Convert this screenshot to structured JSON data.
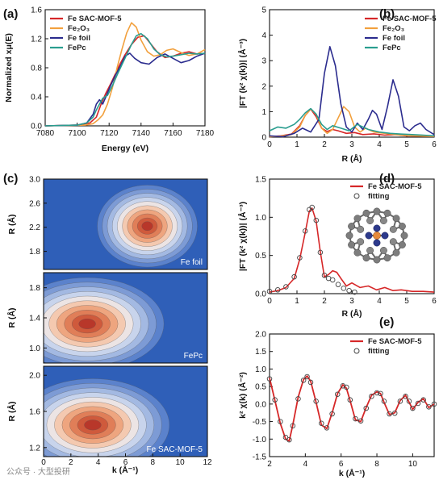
{
  "panel_labels": [
    "(a)",
    "(b)",
    "(c)",
    "(d)",
    "(e)"
  ],
  "watermark": "公众号 · 大型投研",
  "colors": {
    "fe_sac": "#d62728",
    "fe2o3": "#f2a03d",
    "fe_foil": "#2b2c8e",
    "fepc": "#2a9d8f",
    "fitting": "#444444"
  },
  "chart_data": [
    {
      "panel": "(a)",
      "type": "line",
      "xlabel": "Energy (eV)",
      "ylabel": "Normalized xμ(E)",
      "xlim": [
        7080,
        7180
      ],
      "ylim": [
        0.0,
        1.6
      ],
      "xticks": [
        "7080",
        "7100",
        "7120",
        "7140",
        "7160",
        "7180"
      ],
      "yticks": [
        "0.0",
        "0.4",
        "0.8",
        "1.2",
        "1.6"
      ],
      "legend_position": "top-left",
      "series": [
        {
          "name": "Fe SAC-MOF-5",
          "color": "#d62728",
          "x": [
            7080,
            7100,
            7108,
            7112,
            7115,
            7118,
            7121,
            7124,
            7127,
            7130,
            7134,
            7138,
            7142,
            7146,
            7150,
            7155,
            7160,
            7165,
            7170,
            7175,
            7180
          ],
          "y": [
            0.0,
            0.01,
            0.04,
            0.12,
            0.3,
            0.45,
            0.58,
            0.72,
            0.86,
            0.98,
            1.12,
            1.22,
            1.24,
            1.13,
            1.02,
            0.94,
            0.96,
            1.0,
            1.02,
            0.99,
            1.0
          ]
        },
        {
          "name": "Fe₂O₃",
          "color": "#f2a03d",
          "x": [
            7080,
            7105,
            7110,
            7113,
            7116,
            7119,
            7122,
            7125,
            7128,
            7131,
            7134,
            7137,
            7140,
            7144,
            7148,
            7152,
            7156,
            7160,
            7165,
            7170,
            7175,
            7180
          ],
          "y": [
            0.0,
            0.01,
            0.03,
            0.08,
            0.15,
            0.3,
            0.52,
            0.8,
            1.05,
            1.28,
            1.42,
            1.36,
            1.18,
            1.02,
            0.96,
            0.98,
            1.04,
            1.06,
            1.01,
            0.97,
            0.99,
            1.05
          ]
        },
        {
          "name": "Fe foil",
          "color": "#2b2c8e",
          "x": [
            7080,
            7100,
            7106,
            7110,
            7112,
            7114,
            7116,
            7118,
            7121,
            7124,
            7127,
            7130,
            7133,
            7136,
            7140,
            7145,
            7150,
            7155,
            7160,
            7165,
            7170,
            7175,
            7180
          ],
          "y": [
            0.0,
            0.01,
            0.04,
            0.16,
            0.3,
            0.36,
            0.3,
            0.4,
            0.56,
            0.7,
            0.82,
            0.96,
            1.0,
            0.93,
            0.87,
            0.85,
            0.94,
            0.99,
            0.93,
            0.87,
            0.9,
            0.96,
            1.0
          ]
        },
        {
          "name": "FePc",
          "color": "#2a9d8f",
          "x": [
            7080,
            7100,
            7106,
            7110,
            7112,
            7114,
            7116,
            7119,
            7122,
            7125,
            7128,
            7131,
            7134,
            7137,
            7140,
            7144,
            7148,
            7152,
            7156,
            7160,
            7165,
            7170,
            7175,
            7180
          ],
          "y": [
            0.0,
            0.01,
            0.04,
            0.12,
            0.22,
            0.3,
            0.38,
            0.42,
            0.55,
            0.7,
            0.84,
            0.98,
            1.12,
            1.24,
            1.27,
            1.2,
            1.06,
            0.98,
            0.95,
            0.96,
            0.98,
            1.0,
            0.99,
            1.0
          ]
        }
      ]
    },
    {
      "panel": "(b)",
      "type": "line",
      "xlabel": "R (Å)",
      "ylabel": "|FT (k² χ(k))| (Å⁻³)",
      "xlim": [
        0,
        6
      ],
      "ylim": [
        0,
        5
      ],
      "xticks": [
        "0",
        "1",
        "2",
        "3",
        "4",
        "5",
        "6"
      ],
      "yticks": [
        "0",
        "1",
        "2",
        "3",
        "4",
        "5"
      ],
      "legend_position": "top-right",
      "series": [
        {
          "name": "Fe SAC-MOF-5",
          "color": "#d62728",
          "x": [
            0,
            0.4,
            0.8,
            1.1,
            1.3,
            1.5,
            1.7,
            1.9,
            2.1,
            2.3,
            2.5,
            2.8,
            3.1,
            3.4,
            3.8,
            4.2,
            4.6,
            5.0,
            5.5,
            6.0
          ],
          "y": [
            0.02,
            0.05,
            0.12,
            0.45,
            0.85,
            1.1,
            0.8,
            0.35,
            0.22,
            0.3,
            0.25,
            0.15,
            0.18,
            0.1,
            0.13,
            0.08,
            0.1,
            0.05,
            0.04,
            0.03
          ]
        },
        {
          "name": "Fe₂O₃",
          "color": "#f2a03d",
          "x": [
            0,
            0.4,
            0.8,
            1.1,
            1.3,
            1.5,
            1.7,
            1.9,
            2.1,
            2.3,
            2.5,
            2.7,
            2.9,
            3.1,
            3.3,
            3.5,
            3.8,
            4.2,
            4.6,
            5.0,
            5.5,
            6.0
          ],
          "y": [
            0.02,
            0.04,
            0.1,
            0.4,
            0.85,
            1.1,
            0.9,
            0.35,
            0.15,
            0.3,
            0.75,
            1.2,
            1.0,
            0.4,
            0.2,
            0.35,
            0.2,
            0.15,
            0.1,
            0.06,
            0.04,
            0.03
          ]
        },
        {
          "name": "Fe foil",
          "color": "#2b2c8e",
          "x": [
            0,
            0.5,
            0.9,
            1.2,
            1.5,
            1.8,
            2.0,
            2.2,
            2.4,
            2.6,
            2.8,
            3.0,
            3.2,
            3.4,
            3.6,
            3.75,
            3.9,
            4.1,
            4.3,
            4.5,
            4.7,
            4.9,
            5.1,
            5.3,
            5.5,
            5.7,
            6.0
          ],
          "y": [
            0.05,
            0.02,
            0.15,
            0.35,
            0.2,
            0.7,
            2.5,
            3.55,
            2.8,
            1.3,
            0.4,
            0.2,
            0.55,
            0.3,
            0.7,
            1.05,
            0.9,
            0.3,
            1.2,
            2.25,
            1.6,
            0.4,
            0.25,
            0.45,
            0.55,
            0.3,
            0.1
          ]
        },
        {
          "name": "FePc",
          "color": "#2a9d8f",
          "x": [
            0,
            0.3,
            0.6,
            0.9,
            1.1,
            1.3,
            1.5,
            1.7,
            1.9,
            2.1,
            2.3,
            2.6,
            2.9,
            3.2,
            3.6,
            4.0,
            4.4,
            4.8,
            5.2,
            5.6,
            6.0
          ],
          "y": [
            0.25,
            0.4,
            0.35,
            0.5,
            0.7,
            0.95,
            1.12,
            0.9,
            0.5,
            0.3,
            0.45,
            0.35,
            0.25,
            0.5,
            0.3,
            0.2,
            0.15,
            0.12,
            0.1,
            0.08,
            0.05
          ]
        }
      ]
    },
    {
      "panel": "(c)",
      "type": "heatmap",
      "xlabel": "k (Å⁻¹)",
      "xlim": [
        0,
        12
      ],
      "xticks": [
        "0",
        "2",
        "4",
        "6",
        "8",
        "10",
        "12"
      ],
      "colormap": "blue-white-red",
      "subplots": [
        {
          "label": "Fe foil",
          "ylabel": "R (Å)",
          "ylim": [
            1.5,
            3.0
          ],
          "yticks": [
            "1.8",
            "2.2",
            "2.6",
            "3.0"
          ],
          "peak_k": 7.6,
          "peak_R": 2.22
        },
        {
          "label": "FePc",
          "ylabel": "R (Å)",
          "ylim": [
            0.8,
            2.0
          ],
          "yticks": [
            "1.0",
            "1.4",
            "1.8"
          ],
          "peak_k": 3.2,
          "peak_R": 1.32
        },
        {
          "label": "Fe SAC-MOF-5",
          "ylabel": "R (Å)",
          "ylim": [
            1.1,
            2.1
          ],
          "yticks": [
            "1.2",
            "1.6",
            "2.0"
          ],
          "peak_k": 3.6,
          "peak_R": 1.45
        }
      ]
    },
    {
      "panel": "(d)",
      "type": "line",
      "xlabel": "R (Å)",
      "ylabel": "|FT (k² χ(k))| (Å⁻³)",
      "xlim": [
        0,
        6
      ],
      "ylim": [
        0,
        1.5
      ],
      "xticks": [
        "0",
        "1",
        "2",
        "3",
        "4",
        "5",
        "6"
      ],
      "yticks": [
        "0.0",
        "0.5",
        "1.0",
        "1.5"
      ],
      "legend_position": "top-right",
      "series": [
        {
          "name": "Fe SAC-MOF-5",
          "color": "#d62728",
          "style": "line",
          "x": [
            0,
            0.3,
            0.6,
            0.9,
            1.1,
            1.3,
            1.45,
            1.55,
            1.7,
            1.85,
            2.0,
            2.15,
            2.3,
            2.45,
            2.6,
            2.8,
            3.0,
            3.3,
            3.6,
            3.9,
            4.2,
            4.5,
            4.8,
            5.2,
            5.6,
            6.0
          ],
          "y": [
            0.02,
            0.04,
            0.08,
            0.2,
            0.45,
            0.8,
            1.08,
            1.12,
            0.95,
            0.55,
            0.22,
            0.25,
            0.3,
            0.28,
            0.2,
            0.1,
            0.14,
            0.08,
            0.1,
            0.05,
            0.08,
            0.04,
            0.05,
            0.03,
            0.03,
            0.02
          ]
        },
        {
          "name": "fitting",
          "color": "#444444",
          "style": "markers",
          "x": [
            0,
            0.3,
            0.6,
            0.9,
            1.1,
            1.3,
            1.45,
            1.55,
            1.7,
            1.85,
            2.0,
            2.15,
            2.3,
            2.5,
            2.7,
            2.9,
            3.1
          ],
          "y": [
            0.03,
            0.05,
            0.09,
            0.22,
            0.47,
            0.82,
            1.1,
            1.13,
            0.96,
            0.54,
            0.24,
            0.2,
            0.18,
            0.12,
            0.07,
            0.04,
            0.02
          ]
        }
      ]
    },
    {
      "panel": "(e)",
      "type": "line",
      "xlabel": "k (Å⁻¹)",
      "ylabel": "k² χ(k) (Å⁻²)",
      "xlim": [
        2,
        11.2
      ],
      "ylim": [
        -1.5,
        2.0
      ],
      "xticks": [
        "2",
        "4",
        "6",
        "8",
        "10"
      ],
      "yticks": [
        "-1.5",
        "-1.0",
        "-0.5",
        "0.0",
        "0.5",
        "1.0",
        "1.5",
        "2.0"
      ],
      "legend_position": "top-right",
      "series": [
        {
          "name": "Fe SAC-MOF-5",
          "color": "#d62728",
          "style": "line",
          "x": [
            2.0,
            2.3,
            2.6,
            2.9,
            3.1,
            3.3,
            3.6,
            3.9,
            4.1,
            4.3,
            4.6,
            4.9,
            5.2,
            5.5,
            5.8,
            6.1,
            6.3,
            6.5,
            6.8,
            7.1,
            7.4,
            7.7,
            8.0,
            8.2,
            8.4,
            8.7,
            9.0,
            9.3,
            9.6,
            9.8,
            10.0,
            10.3,
            10.6,
            10.9,
            11.2
          ],
          "y": [
            0.75,
            0.1,
            -0.55,
            -1.0,
            -1.05,
            -0.6,
            0.2,
            0.7,
            0.8,
            0.65,
            0.05,
            -0.6,
            -0.7,
            -0.25,
            0.3,
            0.55,
            0.45,
            0.1,
            -0.45,
            -0.5,
            -0.1,
            0.25,
            0.35,
            0.3,
            0.05,
            -0.3,
            -0.25,
            0.1,
            0.25,
            0.05,
            -0.15,
            0.05,
            0.15,
            -0.1,
            0.0
          ]
        },
        {
          "name": "fitting",
          "color": "#444444",
          "style": "markers",
          "x": [
            2.0,
            2.3,
            2.6,
            2.9,
            3.1,
            3.3,
            3.6,
            3.9,
            4.1,
            4.3,
            4.6,
            4.9,
            5.2,
            5.5,
            5.8,
            6.1,
            6.3,
            6.5,
            6.8,
            7.1,
            7.4,
            7.7,
            8.0,
            8.2,
            8.4,
            8.7,
            9.0,
            9.3,
            9.6,
            9.8,
            10.0,
            10.3,
            10.6,
            10.9,
            11.2
          ],
          "y": [
            0.72,
            0.12,
            -0.5,
            -0.95,
            -1.02,
            -0.62,
            0.15,
            0.68,
            0.78,
            0.62,
            0.08,
            -0.55,
            -0.68,
            -0.28,
            0.28,
            0.52,
            0.48,
            0.12,
            -0.42,
            -0.48,
            -0.12,
            0.22,
            0.32,
            0.3,
            0.08,
            -0.28,
            -0.26,
            0.08,
            0.22,
            0.08,
            -0.12,
            0.02,
            0.12,
            -0.08,
            0.0
          ]
        }
      ]
    }
  ]
}
